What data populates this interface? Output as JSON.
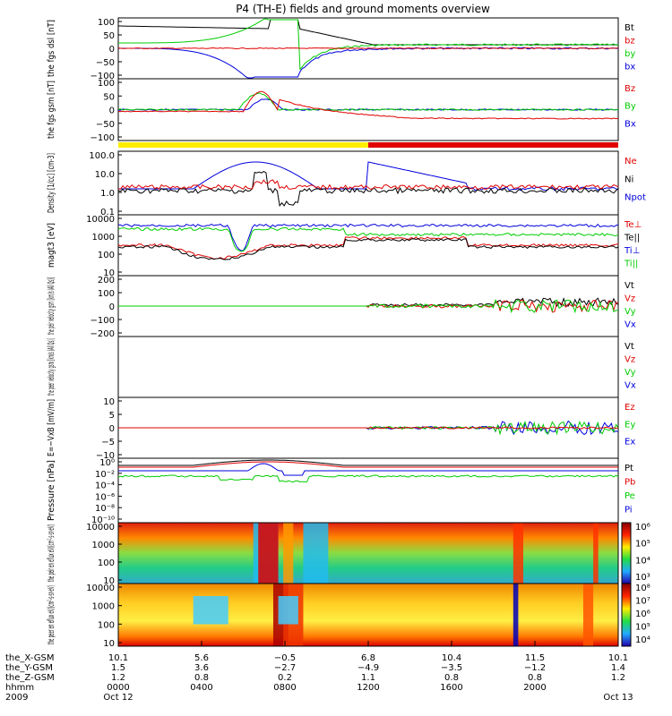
{
  "title": "P4 (TH-E) fields and ground moments overview",
  "colors": {
    "black": "#000000",
    "red": "#e00000",
    "green": "#00cc00",
    "blue": "#0000dd",
    "yellow": "#ffee00"
  },
  "chart_data": [
    {
      "type": "line",
      "panel": "fgs-dsl",
      "ylabel": "the fgs dsl [nT]",
      "yticks": [
        "100",
        "50",
        "0",
        "−50",
        "−100"
      ],
      "ylim": [
        -100,
        100
      ],
      "legend": [
        {
          "name": "Bt",
          "color": "black"
        },
        {
          "name": "bz",
          "color": "red"
        },
        {
          "name": "by",
          "color": "green"
        },
        {
          "name": "bx",
          "color": "blue"
        }
      ]
    },
    {
      "type": "line",
      "panel": "fgs-gsm",
      "ylabel": "the fgs gsm [nT]",
      "yticks": [
        "100",
        "50",
        "0",
        "−50",
        "−100"
      ],
      "ylim": [
        -120,
        100
      ],
      "legend": [
        {
          "name": "Bz",
          "color": "red"
        },
        {
          "name": "By",
          "color": "green"
        },
        {
          "name": "Bx",
          "color": "blue"
        }
      ]
    },
    {
      "type": "line",
      "panel": "density",
      "ylabel": "Density [1/cc] [cm-3]",
      "yticks": [
        "100.0",
        "10.0",
        "1.0",
        "0.1"
      ],
      "ylim": [
        0.05,
        200
      ],
      "yscale": "log",
      "legend": [
        {
          "name": "Ne",
          "color": "red"
        },
        {
          "name": "Ni",
          "color": "black"
        },
        {
          "name": "Npot",
          "color": "blue"
        }
      ]
    },
    {
      "type": "line",
      "panel": "temperature",
      "ylabel": "magt3 [eV]",
      "yticks": [
        "10000",
        "1000",
        "100",
        "10"
      ],
      "ylim": [
        10,
        10000
      ],
      "yscale": "log",
      "legend": [
        {
          "name": "Te⊥",
          "color": "red"
        },
        {
          "name": "Te||",
          "color": "black"
        },
        {
          "name": "Ti⊥",
          "color": "blue"
        },
        {
          "name": "Ti||",
          "color": "green"
        }
      ]
    },
    {
      "type": "line",
      "panel": "peir-velocity",
      "ylabel": "the peir velocity gsm [km/s (All Qs)]",
      "yticks": [
        "200",
        "100",
        "0",
        "−100",
        "−200"
      ],
      "ylim": [
        -200,
        200
      ],
      "legend": [
        {
          "name": "Vt",
          "color": "black"
        },
        {
          "name": "Vz",
          "color": "red"
        },
        {
          "name": "Vy",
          "color": "green"
        },
        {
          "name": "Vx",
          "color": "blue"
        }
      ]
    },
    {
      "type": "line",
      "panel": "peer-velocity",
      "ylabel": "the peer velocity gsm [km/s (All Qs)]",
      "yticks": [],
      "legend": [
        {
          "name": "Vt",
          "color": "black"
        },
        {
          "name": "Vz",
          "color": "red"
        },
        {
          "name": "Vy",
          "color": "green"
        },
        {
          "name": "Vx",
          "color": "blue"
        }
      ]
    },
    {
      "type": "line",
      "panel": "efield",
      "ylabel": "E=−VxB [mV/m]",
      "yticks": [
        "10",
        "5",
        "0",
        "−5",
        "−10"
      ],
      "ylim": [
        -10,
        10
      ],
      "legend": [
        {
          "name": "Ez",
          "color": "red"
        },
        {
          "name": "Ey",
          "color": "green"
        },
        {
          "name": "Ex",
          "color": "blue"
        }
      ]
    },
    {
      "type": "line",
      "panel": "pressure",
      "ylabel": "Pressure [nPa]",
      "yticks": [
        "10⁰",
        "10⁻²",
        "10⁻⁴",
        "10⁻⁶",
        "10⁻⁸",
        "10⁻¹⁰"
      ],
      "ylim": [
        1e-10,
        10
      ],
      "yscale": "log",
      "legend": [
        {
          "name": "Pt",
          "color": "black"
        },
        {
          "name": "Pb",
          "color": "red"
        },
        {
          "name": "Pe",
          "color": "green"
        },
        {
          "name": "Pi",
          "color": "blue"
        }
      ]
    },
    {
      "type": "heatmap",
      "panel": "peir-spectrogram",
      "ylabel": "the peir en eflux eV/(cm²-s-sr-eV)",
      "yticks": [
        "10000",
        "1000",
        "100",
        "10"
      ],
      "colorbar": [
        "10⁶",
        "10⁵",
        "10⁴",
        "10³"
      ]
    },
    {
      "type": "heatmap",
      "panel": "peer-spectrogram",
      "ylabel": "the peer en eflux eV/(cm²-s-sr-eV)",
      "yticks": [
        "10000",
        "1000",
        "100",
        "10"
      ],
      "colorbar": [
        "10⁸",
        "10⁷",
        "10⁶",
        "10⁵",
        "10⁴"
      ]
    }
  ],
  "xaxis": {
    "rows": [
      {
        "label": "the_X-GSM",
        "values": [
          "10.1",
          "5.6",
          "−0.5",
          "6.8",
          "10.4",
          "11.5",
          "10.1"
        ]
      },
      {
        "label": "the_Y-GSM",
        "values": [
          "1.5",
          "3.6",
          "−2.7",
          "−4.9",
          "−3.5",
          "−1.2",
          "1.4"
        ]
      },
      {
        "label": "the_Z-GSM",
        "values": [
          "1.2",
          "0.8",
          "0.2",
          "1.1",
          "0.8",
          "0.8",
          "1.2"
        ]
      },
      {
        "label": "hhmm",
        "values": [
          "0000",
          "0400",
          "0800",
          "1200",
          "1600",
          "2000",
          ""
        ]
      }
    ],
    "year": "2009",
    "date_left": "Oct 12",
    "date_right": "Oct 13"
  }
}
